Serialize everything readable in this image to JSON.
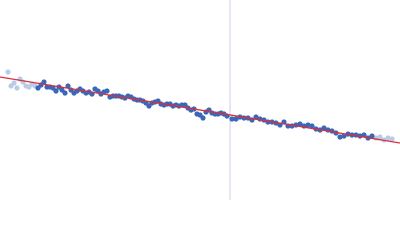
{
  "chart_data": {
    "type": "scatter",
    "xlim": [
      0,
      400
    ],
    "ylim": [
      0,
      200
    ],
    "vline": {
      "x": 230,
      "color": "#c8d2e8"
    },
    "fit": {
      "color": "#d9303a",
      "x": [
        0,
        400
      ],
      "values": [
        123,
        57
      ]
    },
    "series": [
      {
        "color": "#b8cce8",
        "x": [
          8,
          11,
          14,
          17,
          20,
          23,
          26,
          29,
          32,
          35,
          376,
          380,
          384,
          388,
          392
        ],
        "values": [
          128,
          114,
          117,
          112,
          121,
          118,
          114,
          113,
          116,
          114,
          62,
          63,
          60,
          62,
          61
        ]
      },
      {
        "color": "#3a67b8",
        "x": [
          38,
          41,
          44,
          47,
          50,
          53,
          56,
          59,
          62,
          65,
          68,
          71,
          74,
          77,
          80,
          83,
          86,
          89,
          92,
          95,
          98,
          101,
          104,
          107,
          110,
          113,
          116,
          119,
          122,
          125,
          128,
          131,
          134,
          137,
          140,
          143,
          146,
          149,
          152,
          155,
          158,
          161,
          164,
          167,
          170,
          173,
          176,
          179,
          182,
          185,
          188,
          191,
          194,
          197,
          200,
          203,
          206,
          209,
          212,
          215,
          218,
          221,
          224,
          227,
          232,
          236,
          240,
          244,
          248,
          252,
          256,
          260,
          264,
          268,
          272,
          276,
          280,
          284,
          288,
          292,
          296,
          300,
          304,
          308,
          312,
          316,
          320,
          324,
          328,
          332,
          336,
          340,
          344,
          348,
          352,
          356,
          360,
          364,
          368,
          372
        ],
        "values": [
          112,
          115,
          118,
          113,
          113,
          112,
          109,
          113,
          110,
          107,
          114,
          110,
          107,
          109,
          111,
          109,
          107,
          108,
          106,
          111,
          109,
          106,
          108,
          109,
          103,
          104,
          104,
          104,
          103,
          102,
          104,
          103,
          101,
          100,
          100,
          99,
          97,
          94,
          97,
          98,
          99,
          96,
          95,
          96,
          96,
          94,
          95,
          94,
          95,
          95,
          92,
          90,
          91,
          86,
          85,
          82,
          88,
          90,
          87,
          86,
          86,
          87,
          86,
          84,
          81,
          81,
          83,
          82,
          82,
          80,
          83,
          81,
          80,
          78,
          78,
          77,
          75,
          78,
          74,
          74,
          75,
          76,
          74,
          75,
          74,
          71,
          70,
          72,
          70,
          69,
          67,
          63,
          64,
          66,
          65,
          65,
          64,
          65,
          62,
          64
        ]
      }
    ]
  }
}
